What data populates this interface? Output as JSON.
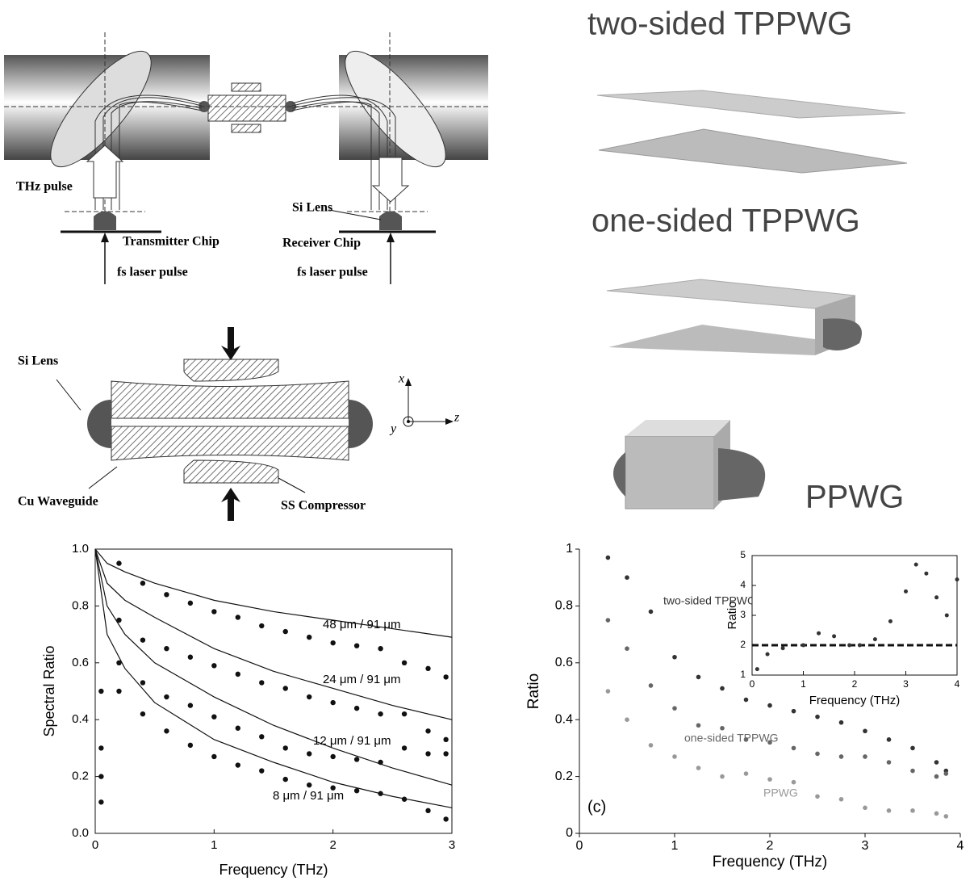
{
  "setup": {
    "thz_pulse": "THz pulse",
    "transmitter": "Transmitter Chip",
    "fs_left": "fs laser pulse",
    "si_lens": "Si Lens",
    "receiver": "Receiver Chip",
    "fs_right": "fs laser pulse"
  },
  "cross_section": {
    "si_lens": "Si Lens",
    "cu": "Cu Waveguide",
    "ss": "SS Compressor",
    "x": "x",
    "y": "y",
    "z": "z"
  },
  "geometries": {
    "two_sided": "two-sided TPPWG",
    "one_sided": "one-sided TPPWG",
    "ppwg": "PPWG"
  },
  "chart_data": [
    {
      "type": "scatter",
      "xlabel": "Frequency (THz)",
      "ylabel": "Spectral Ratio",
      "frame": true,
      "xlim": [
        0,
        3
      ],
      "ylim": [
        0,
        1
      ],
      "xticks": [
        0,
        1,
        2,
        3
      ],
      "yticks": [
        {
          "value": 0,
          "label": "0.0"
        },
        0.2,
        0.4,
        0.6,
        0.8,
        {
          "value": 1,
          "label": "1.0"
        }
      ],
      "annotations": [
        "48 μm / 91 μm",
        "24 μm / 91 μm",
        "12 μm / 91 μm",
        "8 μm / 91 μm"
      ],
      "series": [
        {
          "mode": "line",
          "color": "#111",
          "x": [
            0,
            0.1,
            0.25,
            0.5,
            1,
            1.5,
            2,
            2.5,
            3
          ],
          "values": [
            1,
            0.95,
            0.92,
            0.88,
            0.82,
            0.78,
            0.75,
            0.72,
            0.69
          ]
        },
        {
          "mode": "line",
          "color": "#111",
          "x": [
            0,
            0.1,
            0.25,
            0.5,
            1,
            1.5,
            2,
            2.5,
            3
          ],
          "values": [
            1,
            0.88,
            0.82,
            0.76,
            0.65,
            0.57,
            0.51,
            0.45,
            0.4
          ]
        },
        {
          "mode": "line",
          "color": "#111",
          "x": [
            0,
            0.1,
            0.25,
            0.5,
            1,
            1.5,
            2,
            2.5,
            3
          ],
          "values": [
            1,
            0.8,
            0.7,
            0.6,
            0.48,
            0.38,
            0.3,
            0.23,
            0.17
          ]
        },
        {
          "mode": "line",
          "color": "#111",
          "x": [
            0,
            0.1,
            0.25,
            0.5,
            1,
            1.5,
            2,
            2.5,
            3
          ],
          "values": [
            1,
            0.7,
            0.58,
            0.46,
            0.33,
            0.25,
            0.18,
            0.13,
            0.09
          ]
        },
        {
          "mode": "markers",
          "color": "#111",
          "x": [
            0.05,
            0.2,
            0.4,
            0.6,
            0.8,
            1,
            1.2,
            1.4,
            1.6,
            1.8,
            2,
            2.2,
            2.4,
            2.6,
            2.8,
            2.95
          ],
          "values": [
            0.5,
            0.95,
            0.88,
            0.84,
            0.81,
            0.78,
            0.76,
            0.73,
            0.71,
            0.69,
            0.67,
            0.66,
            0.65,
            0.6,
            0.58,
            0.55
          ]
        },
        {
          "mode": "markers",
          "color": "#111",
          "x": [
            0.05,
            0.2,
            0.4,
            0.6,
            0.8,
            1,
            1.2,
            1.4,
            1.6,
            1.8,
            2,
            2.2,
            2.4,
            2.6,
            2.8,
            2.95
          ],
          "values": [
            0.3,
            0.75,
            0.68,
            0.65,
            0.62,
            0.59,
            0.56,
            0.53,
            0.51,
            0.48,
            0.46,
            0.44,
            0.42,
            0.42,
            0.36,
            0.33
          ]
        },
        {
          "mode": "markers",
          "color": "#111",
          "x": [
            0.05,
            0.2,
            0.4,
            0.6,
            0.8,
            1,
            1.2,
            1.4,
            1.6,
            1.8,
            2,
            2.2,
            2.4,
            2.6,
            2.8,
            2.95
          ],
          "values": [
            0.2,
            0.6,
            0.53,
            0.48,
            0.45,
            0.41,
            0.37,
            0.34,
            0.3,
            0.28,
            0.27,
            0.26,
            0.25,
            0.3,
            0.28,
            0.28
          ]
        },
        {
          "mode": "markers",
          "color": "#111",
          "x": [
            0.05,
            0.2,
            0.4,
            0.6,
            0.8,
            1,
            1.2,
            1.4,
            1.6,
            1.8,
            2,
            2.2,
            2.4,
            2.6,
            2.8,
            2.95
          ],
          "values": [
            0.11,
            0.5,
            0.42,
            0.36,
            0.31,
            0.27,
            0.24,
            0.22,
            0.19,
            0.17,
            0.16,
            0.15,
            0.14,
            0.12,
            0.08,
            0.05
          ]
        }
      ]
    },
    {
      "type": "scatter",
      "xlabel": "Frequency (THz)",
      "ylabel": "Ratio",
      "frame": false,
      "xlim": [
        0,
        4
      ],
      "ylim": [
        0,
        1
      ],
      "xticks": [
        0,
        1,
        2,
        3,
        4
      ],
      "yticks": [
        0,
        0.2,
        0.4,
        0.6,
        0.8,
        1
      ],
      "annotations": [
        "(c)"
      ],
      "series": [
        {
          "name": "two-sided TPPWG",
          "mode": "markers",
          "color": "#333",
          "x": [
            0.3,
            0.5,
            0.75,
            1,
            1.25,
            1.5,
            1.75,
            2,
            2.25,
            2.5,
            2.75,
            3,
            3.25,
            3.5,
            3.75,
            3.85
          ],
          "values": [
            0.97,
            0.9,
            0.78,
            0.62,
            0.55,
            0.51,
            0.47,
            0.45,
            0.43,
            0.41,
            0.39,
            0.36,
            0.33,
            0.3,
            0.25,
            0.22
          ]
        },
        {
          "name": "one-sided TPPWG",
          "mode": "markers",
          "color": "#666",
          "x": [
            0.3,
            0.5,
            0.75,
            1,
            1.25,
            1.5,
            1.75,
            2,
            2.25,
            2.5,
            2.75,
            3,
            3.25,
            3.5,
            3.75,
            3.85
          ],
          "values": [
            0.75,
            0.65,
            0.52,
            0.44,
            0.38,
            0.37,
            0.33,
            0.32,
            0.3,
            0.28,
            0.27,
            0.27,
            0.25,
            0.22,
            0.2,
            0.21
          ]
        },
        {
          "name": "PPWG",
          "mode": "markers",
          "color": "#999",
          "x": [
            0.3,
            0.5,
            0.75,
            1,
            1.25,
            1.5,
            1.75,
            2,
            2.25,
            2.5,
            2.75,
            3,
            3.25,
            3.5,
            3.75,
            3.85
          ],
          "values": [
            0.5,
            0.4,
            0.31,
            0.27,
            0.23,
            0.2,
            0.21,
            0.19,
            0.18,
            0.13,
            0.12,
            0.09,
            0.08,
            0.08,
            0.07,
            0.06
          ]
        }
      ]
    },
    {
      "type": "scatter",
      "xlabel": "Frequency (THz)",
      "ylabel": "Ratio",
      "frame": true,
      "xlim": [
        0,
        4
      ],
      "ylim": [
        1,
        5
      ],
      "xticks": [
        0,
        1,
        2,
        3,
        4
      ],
      "yticks": [
        1,
        2,
        3,
        4,
        5
      ],
      "annotations": [],
      "series": [
        {
          "mode": "line",
          "dash": true,
          "color": "#111",
          "x": [
            0,
            4
          ],
          "values": [
            2,
            2
          ]
        },
        {
          "mode": "markers",
          "color": "#333",
          "x": [
            0.1,
            0.3,
            0.6,
            1,
            1.3,
            1.6,
            1.9,
            2.1,
            2.4,
            2.7,
            3,
            3.2,
            3.4,
            3.6,
            3.8,
            4
          ],
          "values": [
            1.2,
            1.7,
            1.9,
            2,
            2.4,
            2.3,
            2,
            2,
            2.2,
            2.8,
            3.8,
            4.7,
            4.4,
            3.6,
            3,
            4.2
          ]
        }
      ]
    }
  ]
}
